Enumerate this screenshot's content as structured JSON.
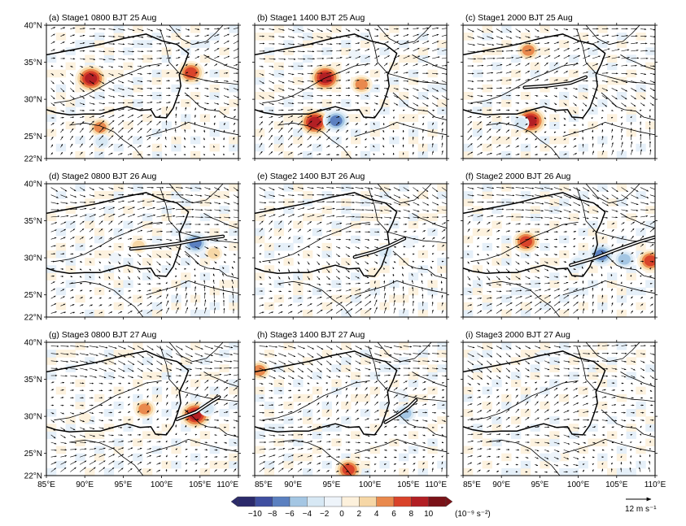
{
  "chart_data": {
    "type": "heatmap",
    "variable_unit": "(10⁻⁹ s⁻²)",
    "x_ticks": [
      "85°E",
      "90°E",
      "95°E",
      "100°E",
      "105°E",
      "110°E"
    ],
    "y_ticks": [
      "22°N",
      "25°N",
      "30°N",
      "35°N",
      "40°N"
    ],
    "lon_range": [
      85,
      110
    ],
    "lat_range": [
      22,
      40
    ],
    "colorbar": {
      "ticks": [
        "−10",
        "−8",
        "−6",
        "−4",
        "−2",
        "0",
        "2",
        "4",
        "6",
        "8",
        "10"
      ],
      "colors": [
        "#2b2a6b",
        "#3f4fa0",
        "#5b80c0",
        "#a4c6e3",
        "#d7e8f4",
        "#eef4fa",
        "#fdf1dc",
        "#f6d7a6",
        "#e9894d",
        "#d9432a",
        "#b21f24",
        "#7a1218"
      ]
    },
    "vector_reference": "12 m s⁻¹",
    "panels": [
      {
        "label": "(a)  Stage1 0800 BJT 25 Aug",
        "blobs": [
          {
            "lon": 90.8,
            "lat": 32.8,
            "v": 10
          },
          {
            "lon": 103.8,
            "lat": 33.6,
            "v": 8
          },
          {
            "lon": 92.0,
            "lat": 26.2,
            "v": 6
          },
          {
            "lon": 92.2,
            "lat": 24.3,
            "v": -4
          },
          {
            "lon": 95.5,
            "lat": 31.0,
            "v": -2
          }
        ],
        "shear_line": []
      },
      {
        "label": "(b)  Stage1 1400 BJT 25 Aug",
        "blobs": [
          {
            "lon": 94.2,
            "lat": 32.9,
            "v": 10
          },
          {
            "lon": 92.8,
            "lat": 26.9,
            "v": 10
          },
          {
            "lon": 95.6,
            "lat": 27.1,
            "v": -8
          },
          {
            "lon": 98.9,
            "lat": 32.0,
            "v": 6
          },
          {
            "lon": 98.0,
            "lat": 36.0,
            "v": -2
          }
        ],
        "shear_line": []
      },
      {
        "label": "(c)  Stage1 2000 BJT 25 Aug",
        "blobs": [
          {
            "lon": 93.8,
            "lat": 27.1,
            "v": 10
          },
          {
            "lon": 93.5,
            "lat": 36.6,
            "v": 6
          },
          {
            "lon": 92.5,
            "lat": 26.8,
            "v": -4
          }
        ],
        "shear_line": [
          [
            93.0,
            31.6
          ],
          [
            96.0,
            31.8
          ],
          [
            99.0,
            32.2
          ],
          [
            101.0,
            33.0
          ]
        ]
      },
      {
        "label": "(d)  Stage2 0800 BJT 26 Aug",
        "blobs": [
          {
            "lon": 104.4,
            "lat": 32.0,
            "v": -8
          },
          {
            "lon": 97.0,
            "lat": 31.6,
            "v": 4
          },
          {
            "lon": 106.8,
            "lat": 30.6,
            "v": 4
          },
          {
            "lon": 94.0,
            "lat": 30.0,
            "v": -2
          }
        ],
        "shear_line": [
          [
            96.0,
            31.2
          ],
          [
            99.0,
            31.5
          ],
          [
            102.0,
            31.9
          ],
          [
            105.0,
            32.5
          ],
          [
            108.0,
            32.9
          ]
        ]
      },
      {
        "label": "(e)  Stage2 1400 BJT 26 Aug",
        "blobs": [
          {
            "lon": 102.0,
            "lat": 30.8,
            "v": -4
          },
          {
            "lon": 105.0,
            "lat": 32.0,
            "v": -2
          },
          {
            "lon": 100.5,
            "lat": 28.0,
            "v": 2
          }
        ],
        "shear_line": [
          [
            98.0,
            30.1
          ],
          [
            100.5,
            30.8
          ],
          [
            102.5,
            31.6
          ],
          [
            104.5,
            32.6
          ]
        ]
      },
      {
        "label": "(f)  Stage2 2000 BJT 26 Aug",
        "blobs": [
          {
            "lon": 93.2,
            "lat": 32.2,
            "v": 8
          },
          {
            "lon": 103.0,
            "lat": 30.4,
            "v": -8
          },
          {
            "lon": 106.0,
            "lat": 29.8,
            "v": -6
          },
          {
            "lon": 109.4,
            "lat": 29.6,
            "v": 8
          },
          {
            "lon": 100.0,
            "lat": 29.3,
            "v": -4
          }
        ],
        "shear_line": [
          [
            99.0,
            29.0
          ],
          [
            102.0,
            29.9
          ],
          [
            105.0,
            31.1
          ],
          [
            108.0,
            32.2
          ],
          [
            110.0,
            32.8
          ]
        ]
      },
      {
        "label": "(g)  Stage3 0800 BJT 27 Aug",
        "blobs": [
          {
            "lon": 97.8,
            "lat": 31.0,
            "v": 6
          },
          {
            "lon": 104.4,
            "lat": 30.2,
            "v": 10
          },
          {
            "lon": 106.0,
            "lat": 31.0,
            "v": -4
          },
          {
            "lon": 90.0,
            "lat": 29.8,
            "v": 2
          }
        ],
        "shear_line": [
          [
            102.0,
            29.6
          ],
          [
            104.5,
            30.6
          ],
          [
            106.5,
            32.0
          ],
          [
            107.5,
            32.6
          ]
        ]
      },
      {
        "label": "(h)  Stage3 1400 BJT 27 Aug",
        "blobs": [
          {
            "lon": 104.6,
            "lat": 30.4,
            "v": -6
          },
          {
            "lon": 97.2,
            "lat": 22.8,
            "v": 8
          },
          {
            "lon": 85.6,
            "lat": 36.2,
            "v": 6
          },
          {
            "lon": 104.0,
            "lat": 33.0,
            "v": -2
          }
        ],
        "shear_line": [
          [
            102.0,
            29.2
          ],
          [
            103.5,
            30.1
          ],
          [
            105.0,
            31.2
          ],
          [
            106.0,
            32.2
          ]
        ]
      },
      {
        "label": "(i)  Stage3 2000 BJT 27 Aug",
        "blobs": [
          {
            "lon": 86.4,
            "lat": 38.2,
            "v": -2
          },
          {
            "lon": 95.0,
            "lat": 38.0,
            "v": -2
          },
          {
            "lon": 103.0,
            "lat": 36.5,
            "v": 2
          },
          {
            "lon": 97.0,
            "lat": 24.5,
            "v": -2
          }
        ],
        "shear_line": []
      }
    ]
  }
}
